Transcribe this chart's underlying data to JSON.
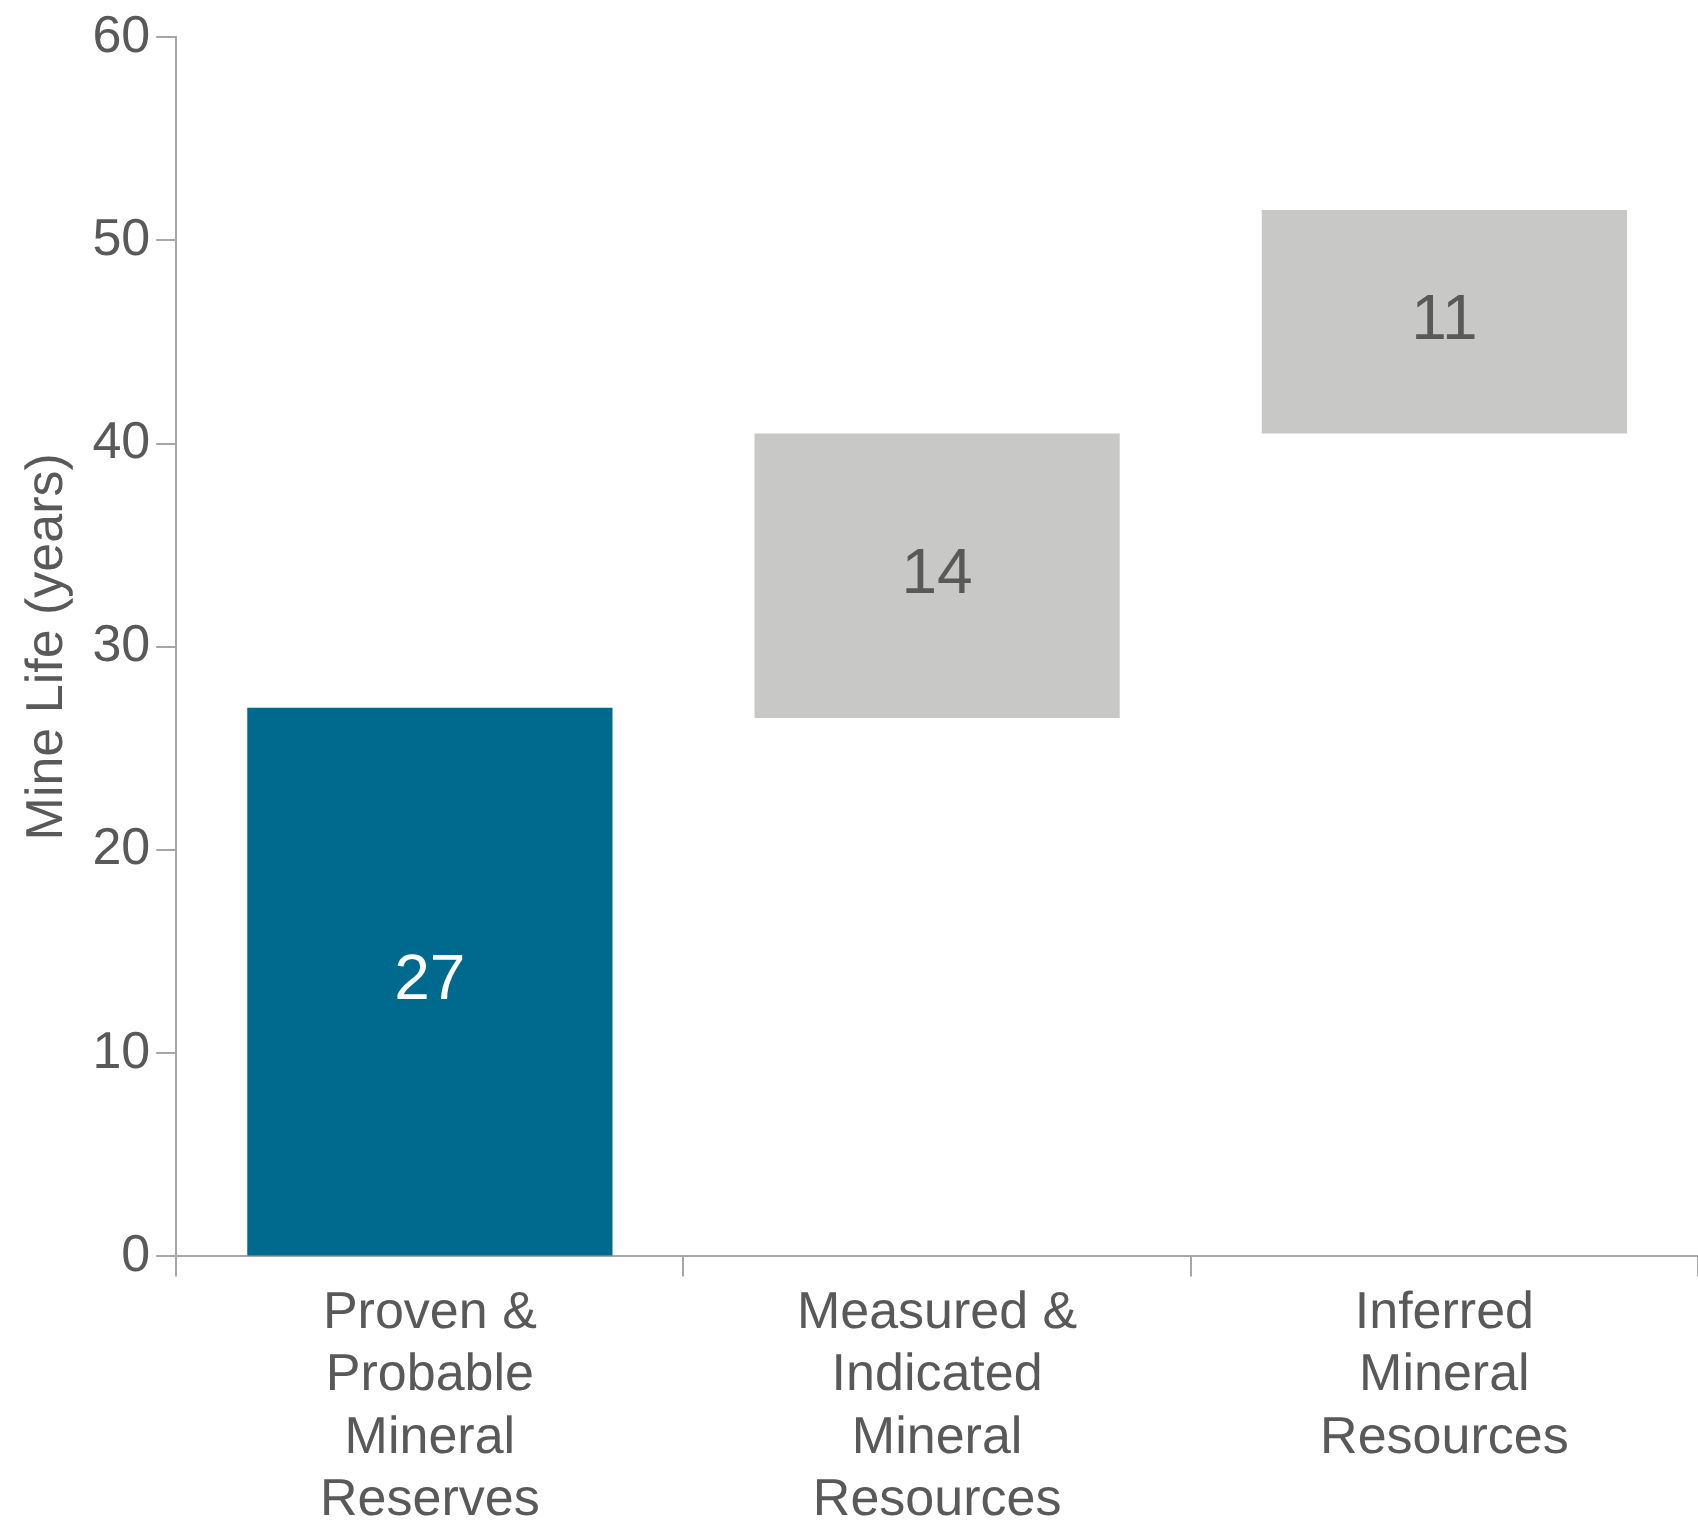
{
  "chart_data": {
    "type": "bar",
    "ylabel": "Mine Life (years)",
    "categories": [
      "Proven & Probable Mineral Reserves",
      "Measured & Indicated Mineral Resources",
      "Inferred Mineral Resources"
    ],
    "values": [
      27,
      14,
      11
    ],
    "base": [
      0,
      26.5,
      40.5
    ],
    "colors": [
      "#006a8e",
      "#c8c9c6",
      "#c8c9c6"
    ],
    "ylim": [
      0,
      60
    ],
    "yticks": [
      0,
      10,
      20,
      30,
      40,
      50,
      60
    ],
    "grid": false,
    "data_labels": true
  }
}
